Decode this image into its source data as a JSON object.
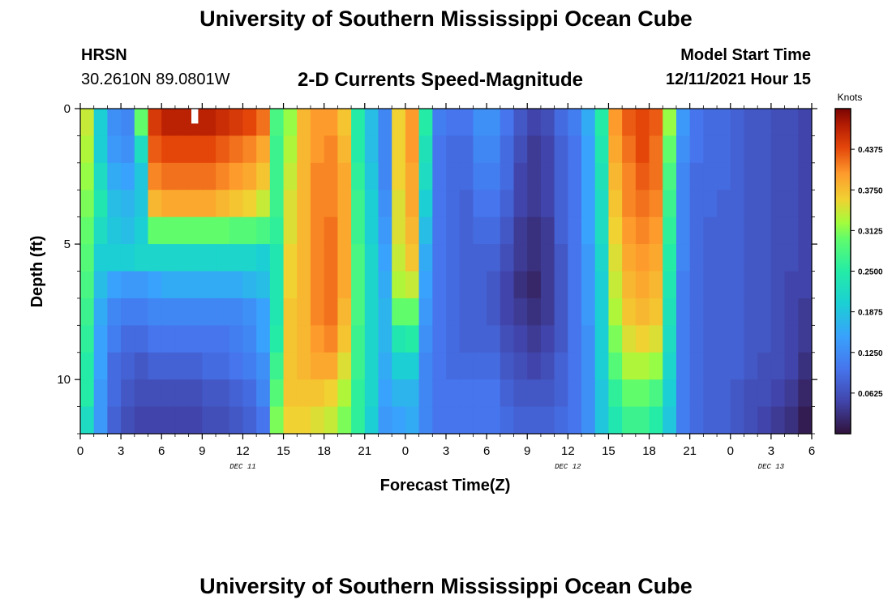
{
  "header": {
    "title": "University of Southern Mississippi Ocean Cube",
    "station": "HRSN",
    "coordinates": "30.2610N  89.0801W",
    "plot_title": "2-D Currents Speed-Magnitude",
    "model_start_label": "Model Start Time",
    "model_start_value": "12/11/2021 Hour 15"
  },
  "footer": {
    "title": "University of Southern Mississippi Ocean Cube"
  },
  "chart_data": {
    "type": "heatmap",
    "title": "2-D Currents Speed-Magnitude",
    "xlabel": "Forecast Time(Z)",
    "ylabel": "Depth (ft)",
    "x_range_hours": [
      0,
      54
    ],
    "y_range_ft": [
      0,
      12
    ],
    "x_tick_labels": [
      "0",
      "3",
      "6",
      "9",
      "12",
      "15",
      "18",
      "21",
      "0",
      "3",
      "6",
      "9",
      "12",
      "15",
      "18",
      "21",
      "0",
      "3",
      "6"
    ],
    "date_labels": [
      {
        "label": "DEC 11",
        "hour": 12
      },
      {
        "label": "DEC 12",
        "hour": 36
      },
      {
        "label": "DEC 13",
        "hour": 51
      }
    ],
    "y_ticks": [
      0,
      5,
      10
    ],
    "colorbar": {
      "unit": "Knots",
      "min": 0.0,
      "max": 0.5,
      "tick_values": [
        0.0625,
        0.125,
        0.1875,
        0.25,
        0.3125,
        0.375,
        0.4375
      ],
      "tick_labels": [
        "0.0625",
        "0.1250",
        "0.1875",
        "0.2500",
        "0.3125",
        "0.3750",
        "0.4375"
      ]
    },
    "depth_bins": [
      0.5,
      1.5,
      2.5,
      3.5,
      4.5,
      5.5,
      6.5,
      7.5,
      8.5,
      9.5,
      10.5,
      11.5
    ],
    "time_step_hours": 1,
    "columns": [
      {
        "hour": 0,
        "values": [
          0.34,
          0.33,
          0.32,
          0.31,
          0.3,
          0.29,
          0.28,
          0.27,
          0.26,
          0.25,
          0.25,
          0.22
        ]
      },
      {
        "hour": 1,
        "values": [
          0.2,
          0.2,
          0.22,
          0.24,
          0.22,
          0.2,
          0.18,
          0.16,
          0.15,
          0.15,
          0.14,
          0.14
        ]
      },
      {
        "hour": 2,
        "values": [
          0.13,
          0.14,
          0.16,
          0.18,
          0.19,
          0.2,
          0.15,
          0.12,
          0.11,
          0.09,
          0.09,
          0.08
        ]
      },
      {
        "hour": 3,
        "values": [
          0.12,
          0.13,
          0.15,
          0.17,
          0.18,
          0.2,
          0.14,
          0.11,
          0.09,
          0.08,
          0.07,
          0.06
        ]
      },
      {
        "hour": 4,
        "values": [
          0.3,
          0.22,
          0.19,
          0.19,
          0.2,
          0.21,
          0.14,
          0.11,
          0.09,
          0.07,
          0.06,
          0.05
        ]
      },
      {
        "hour": 5,
        "values": [
          0.45,
          0.43,
          0.41,
          0.38,
          0.3,
          0.21,
          0.15,
          0.12,
          0.1,
          0.08,
          0.06,
          0.05
        ]
      },
      {
        "hour": 6,
        "values": [
          0.47,
          0.44,
          0.42,
          0.39,
          0.3,
          0.21,
          0.16,
          0.12,
          0.1,
          0.08,
          0.06,
          0.05
        ]
      },
      {
        "hour": 7,
        "values": [
          0.47,
          0.44,
          0.42,
          0.39,
          0.3,
          0.21,
          0.16,
          0.12,
          0.1,
          0.08,
          0.06,
          0.05
        ]
      },
      {
        "hour": 8,
        "values": [
          0.47,
          0.44,
          0.42,
          0.39,
          0.3,
          0.21,
          0.16,
          0.12,
          0.1,
          0.08,
          0.06,
          0.05
        ]
      },
      {
        "hour": 9,
        "values": [
          0.47,
          0.44,
          0.42,
          0.39,
          0.3,
          0.21,
          0.16,
          0.12,
          0.1,
          0.09,
          0.07,
          0.06
        ]
      },
      {
        "hour": 10,
        "values": [
          0.46,
          0.43,
          0.41,
          0.38,
          0.3,
          0.21,
          0.16,
          0.12,
          0.1,
          0.09,
          0.07,
          0.06
        ]
      },
      {
        "hour": 11,
        "values": [
          0.45,
          0.42,
          0.4,
          0.37,
          0.29,
          0.21,
          0.16,
          0.12,
          0.11,
          0.1,
          0.08,
          0.07
        ]
      },
      {
        "hour": 12,
        "values": [
          0.44,
          0.41,
          0.39,
          0.36,
          0.29,
          0.21,
          0.17,
          0.13,
          0.12,
          0.11,
          0.09,
          0.08
        ]
      },
      {
        "hour": 13,
        "values": [
          0.42,
          0.39,
          0.37,
          0.34,
          0.28,
          0.2,
          0.18,
          0.15,
          0.15,
          0.13,
          0.12,
          0.1
        ]
      },
      {
        "hour": 14,
        "values": [
          0.28,
          0.27,
          0.27,
          0.27,
          0.26,
          0.24,
          0.24,
          0.24,
          0.25,
          0.27,
          0.29,
          0.31
        ]
      },
      {
        "hour": 15,
        "values": [
          0.32,
          0.33,
          0.34,
          0.35,
          0.35,
          0.36,
          0.36,
          0.37,
          0.37,
          0.37,
          0.37,
          0.36
        ]
      },
      {
        "hour": 16,
        "values": [
          0.38,
          0.38,
          0.38,
          0.38,
          0.38,
          0.38,
          0.38,
          0.38,
          0.38,
          0.38,
          0.37,
          0.36
        ]
      },
      {
        "hour": 17,
        "values": [
          0.4,
          0.4,
          0.41,
          0.41,
          0.41,
          0.41,
          0.41,
          0.41,
          0.4,
          0.39,
          0.37,
          0.35
        ]
      },
      {
        "hour": 18,
        "values": [
          0.4,
          0.41,
          0.41,
          0.41,
          0.42,
          0.42,
          0.42,
          0.42,
          0.41,
          0.39,
          0.36,
          0.34
        ]
      },
      {
        "hour": 19,
        "values": [
          0.37,
          0.38,
          0.39,
          0.39,
          0.39,
          0.39,
          0.39,
          0.38,
          0.37,
          0.35,
          0.33,
          0.31
        ]
      },
      {
        "hour": 20,
        "values": [
          0.25,
          0.25,
          0.26,
          0.27,
          0.27,
          0.28,
          0.28,
          0.28,
          0.27,
          0.27,
          0.26,
          0.26
        ]
      },
      {
        "hour": 21,
        "values": [
          0.18,
          0.18,
          0.19,
          0.2,
          0.2,
          0.21,
          0.21,
          0.21,
          0.21,
          0.21,
          0.21,
          0.2
        ]
      },
      {
        "hour": 22,
        "values": [
          0.12,
          0.12,
          0.12,
          0.13,
          0.14,
          0.15,
          0.16,
          0.17,
          0.17,
          0.16,
          0.15,
          0.14
        ]
      },
      {
        "hour": 23,
        "values": [
          0.36,
          0.36,
          0.36,
          0.35,
          0.35,
          0.34,
          0.33,
          0.3,
          0.24,
          0.2,
          0.17,
          0.15
        ]
      },
      {
        "hour": 24,
        "values": [
          0.4,
          0.4,
          0.39,
          0.39,
          0.38,
          0.37,
          0.34,
          0.3,
          0.25,
          0.2,
          0.17,
          0.16
        ]
      },
      {
        "hour": 25,
        "values": [
          0.25,
          0.23,
          0.22,
          0.2,
          0.18,
          0.16,
          0.15,
          0.14,
          0.13,
          0.12,
          0.12,
          0.12
        ]
      },
      {
        "hour": 26,
        "values": [
          0.11,
          0.1,
          0.1,
          0.1,
          0.1,
          0.1,
          0.1,
          0.1,
          0.1,
          0.1,
          0.1,
          0.1
        ]
      },
      {
        "hour": 27,
        "values": [
          0.1,
          0.09,
          0.09,
          0.09,
          0.09,
          0.09,
          0.09,
          0.09,
          0.09,
          0.09,
          0.1,
          0.1
        ]
      },
      {
        "hour": 28,
        "values": [
          0.1,
          0.09,
          0.09,
          0.08,
          0.08,
          0.08,
          0.08,
          0.08,
          0.08,
          0.09,
          0.1,
          0.1
        ]
      },
      {
        "hour": 29,
        "values": [
          0.13,
          0.12,
          0.11,
          0.1,
          0.09,
          0.08,
          0.08,
          0.08,
          0.08,
          0.09,
          0.1,
          0.1
        ]
      },
      {
        "hour": 30,
        "values": [
          0.13,
          0.12,
          0.11,
          0.1,
          0.09,
          0.08,
          0.07,
          0.07,
          0.08,
          0.09,
          0.1,
          0.1
        ]
      },
      {
        "hour": 31,
        "values": [
          0.1,
          0.09,
          0.09,
          0.08,
          0.07,
          0.06,
          0.05,
          0.05,
          0.06,
          0.07,
          0.08,
          0.09
        ]
      },
      {
        "hour": 32,
        "values": [
          0.07,
          0.06,
          0.05,
          0.05,
          0.04,
          0.04,
          0.03,
          0.04,
          0.05,
          0.06,
          0.07,
          0.08
        ]
      },
      {
        "hour": 33,
        "values": [
          0.05,
          0.04,
          0.04,
          0.04,
          0.03,
          0.03,
          0.02,
          0.03,
          0.04,
          0.05,
          0.07,
          0.08
        ]
      },
      {
        "hour": 34,
        "values": [
          0.06,
          0.05,
          0.05,
          0.05,
          0.04,
          0.04,
          0.04,
          0.04,
          0.05,
          0.06,
          0.07,
          0.08
        ]
      },
      {
        "hour": 35,
        "values": [
          0.09,
          0.08,
          0.08,
          0.08,
          0.08,
          0.07,
          0.07,
          0.07,
          0.07,
          0.08,
          0.08,
          0.09
        ]
      },
      {
        "hour": 36,
        "values": [
          0.11,
          0.1,
          0.1,
          0.1,
          0.1,
          0.1,
          0.1,
          0.1,
          0.1,
          0.1,
          0.1,
          0.1
        ]
      },
      {
        "hour": 37,
        "values": [
          0.16,
          0.15,
          0.15,
          0.15,
          0.15,
          0.14,
          0.14,
          0.14,
          0.13,
          0.13,
          0.13,
          0.13
        ]
      },
      {
        "hour": 38,
        "values": [
          0.25,
          0.24,
          0.23,
          0.22,
          0.22,
          0.21,
          0.2,
          0.2,
          0.2,
          0.2,
          0.19,
          0.19
        ]
      },
      {
        "hour": 39,
        "values": [
          0.4,
          0.39,
          0.38,
          0.37,
          0.36,
          0.35,
          0.34,
          0.33,
          0.31,
          0.29,
          0.26,
          0.24
        ]
      },
      {
        "hour": 40,
        "values": [
          0.43,
          0.42,
          0.41,
          0.41,
          0.4,
          0.39,
          0.38,
          0.37,
          0.35,
          0.33,
          0.3,
          0.27
        ]
      },
      {
        "hour": 41,
        "values": [
          0.44,
          0.44,
          0.43,
          0.42,
          0.41,
          0.4,
          0.39,
          0.38,
          0.36,
          0.33,
          0.3,
          0.27
        ]
      },
      {
        "hour": 42,
        "values": [
          0.43,
          0.42,
          0.42,
          0.41,
          0.4,
          0.39,
          0.38,
          0.37,
          0.35,
          0.32,
          0.28,
          0.25
        ]
      },
      {
        "hour": 43,
        "values": [
          0.32,
          0.3,
          0.28,
          0.27,
          0.26,
          0.25,
          0.24,
          0.23,
          0.22,
          0.21,
          0.2,
          0.19
        ]
      },
      {
        "hour": 44,
        "values": [
          0.14,
          0.13,
          0.12,
          0.12,
          0.12,
          0.12,
          0.11,
          0.11,
          0.11,
          0.11,
          0.11,
          0.11
        ]
      },
      {
        "hour": 45,
        "values": [
          0.1,
          0.1,
          0.09,
          0.09,
          0.09,
          0.09,
          0.09,
          0.09,
          0.09,
          0.09,
          0.09,
          0.09
        ]
      },
      {
        "hour": 46,
        "values": [
          0.09,
          0.09,
          0.09,
          0.09,
          0.08,
          0.08,
          0.08,
          0.08,
          0.08,
          0.08,
          0.08,
          0.08
        ]
      },
      {
        "hour": 47,
        "values": [
          0.09,
          0.09,
          0.09,
          0.08,
          0.08,
          0.08,
          0.08,
          0.08,
          0.08,
          0.08,
          0.08,
          0.08
        ]
      },
      {
        "hour": 48,
        "values": [
          0.08,
          0.08,
          0.08,
          0.08,
          0.08,
          0.08,
          0.08,
          0.08,
          0.08,
          0.08,
          0.07,
          0.07
        ]
      },
      {
        "hour": 49,
        "values": [
          0.07,
          0.07,
          0.07,
          0.07,
          0.07,
          0.07,
          0.07,
          0.07,
          0.07,
          0.07,
          0.06,
          0.06
        ]
      },
      {
        "hour": 50,
        "values": [
          0.07,
          0.07,
          0.07,
          0.07,
          0.07,
          0.07,
          0.07,
          0.07,
          0.07,
          0.06,
          0.06,
          0.05
        ]
      },
      {
        "hour": 51,
        "values": [
          0.06,
          0.06,
          0.06,
          0.06,
          0.06,
          0.06,
          0.06,
          0.06,
          0.06,
          0.06,
          0.05,
          0.04
        ]
      },
      {
        "hour": 52,
        "values": [
          0.06,
          0.06,
          0.06,
          0.06,
          0.06,
          0.06,
          0.05,
          0.05,
          0.05,
          0.05,
          0.04,
          0.03
        ]
      },
      {
        "hour": 53,
        "values": [
          0.05,
          0.05,
          0.05,
          0.05,
          0.05,
          0.05,
          0.05,
          0.04,
          0.04,
          0.03,
          0.02,
          0.01
        ]
      }
    ]
  }
}
